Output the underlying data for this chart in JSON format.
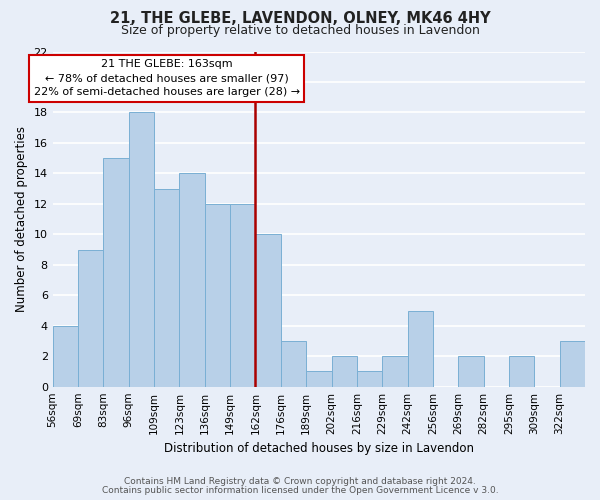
{
  "title": "21, THE GLEBE, LAVENDON, OLNEY, MK46 4HY",
  "subtitle": "Size of property relative to detached houses in Lavendon",
  "xlabel": "Distribution of detached houses by size in Lavendon",
  "ylabel": "Number of detached properties",
  "bar_color": "#b8d0e8",
  "bar_edge_color": "#7aafd4",
  "background_color": "#e8eef8",
  "grid_color": "#ffffff",
  "bin_labels": [
    "56sqm",
    "69sqm",
    "83sqm",
    "96sqm",
    "109sqm",
    "123sqm",
    "136sqm",
    "149sqm",
    "162sqm",
    "176sqm",
    "189sqm",
    "202sqm",
    "216sqm",
    "229sqm",
    "242sqm",
    "256sqm",
    "269sqm",
    "282sqm",
    "295sqm",
    "309sqm",
    "322sqm"
  ],
  "counts": [
    4,
    9,
    15,
    18,
    13,
    14,
    12,
    12,
    10,
    3,
    1,
    2,
    1,
    2,
    5,
    0,
    2,
    0,
    2,
    0,
    3
  ],
  "property_line_bin": 8,
  "annotation_title": "21 THE GLEBE: 163sqm",
  "annotation_line1": "← 78% of detached houses are smaller (97)",
  "annotation_line2": "22% of semi-detached houses are larger (28) →",
  "annotation_box_color": "#ffffff",
  "annotation_box_edge": "#cc0000",
  "vline_color": "#aa0000",
  "ylim": [
    0,
    22
  ],
  "yticks": [
    0,
    2,
    4,
    6,
    8,
    10,
    12,
    14,
    16,
    18,
    20,
    22
  ],
  "footer1": "Contains HM Land Registry data © Crown copyright and database right 2024.",
  "footer2": "Contains public sector information licensed under the Open Government Licence v 3.0."
}
